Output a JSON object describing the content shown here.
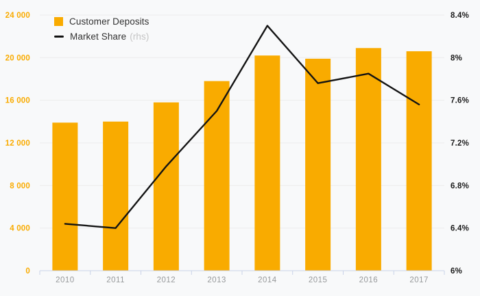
{
  "page": {
    "background": "#F8F9FA"
  },
  "legend": {
    "items": [
      {
        "label": "Customer Deposits",
        "note": ""
      },
      {
        "label": "Market Share",
        "note": "(rhs)"
      }
    ]
  },
  "colors": {
    "bar": "#F9AB00",
    "line": "#131313",
    "grid": "#ECECEC",
    "axis_line": "#C9D2E8",
    "left_tick_text": "#F9AB00",
    "right_tick_text": "#1A1A1A",
    "x_tick_text": "#97999B",
    "legend_text": "#323232",
    "legend_note": "#C4C4C4"
  },
  "chart_data": {
    "type": "bar",
    "title": "",
    "categories": [
      "2010",
      "2011",
      "2012",
      "2013",
      "2014",
      "2015",
      "2016",
      "2017"
    ],
    "series": [
      {
        "name": "Customer Deposits",
        "type": "bar",
        "axis": "left",
        "values": [
          13900,
          14000,
          15800,
          17800,
          20200,
          19900,
          20900,
          20600
        ]
      },
      {
        "name": "Market Share",
        "type": "line",
        "axis": "right",
        "axis_note": "(rhs)",
        "values": [
          6.44,
          6.4,
          6.98,
          7.5,
          8.3,
          7.76,
          7.85,
          7.56
        ]
      }
    ],
    "left_axis": {
      "min": 0,
      "max": 24000,
      "step": 4000,
      "tick_labels_top_to_bottom": [
        "24 000",
        "20 000",
        "16 000",
        "12 000",
        "8 000",
        "4 000",
        "0"
      ]
    },
    "right_axis": {
      "min": 6,
      "max": 8.4,
      "step": 0.4,
      "tick_labels_top_to_bottom": [
        "8.4%",
        "8%",
        "7.6%",
        "7.2%",
        "6.8%",
        "6.4%",
        "6%"
      ]
    },
    "grid": true,
    "legend_position": "top-left"
  }
}
